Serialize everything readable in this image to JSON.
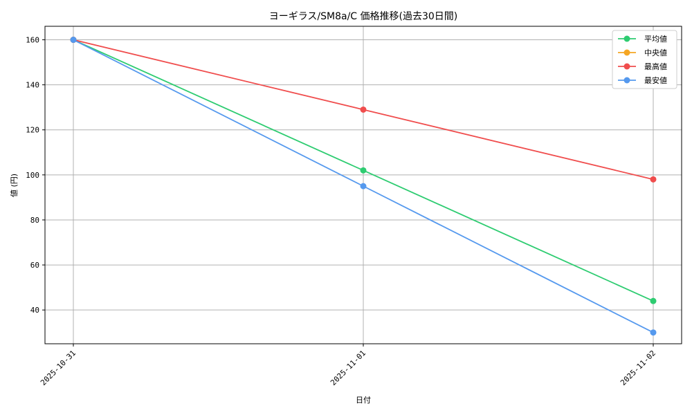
{
  "chart_data": {
    "type": "line",
    "title": "ヨーギラス/SM8a/C 価格推移(過去30日間)",
    "xlabel": "日付",
    "ylabel": "値 (円)",
    "categories": [
      "2025-10-31",
      "2025-11-01",
      "2025-11-02"
    ],
    "yticks": [
      40,
      60,
      80,
      100,
      120,
      140,
      160
    ],
    "ylim": [
      25,
      166
    ],
    "grid": true,
    "legend_position": "top-right",
    "series": [
      {
        "name": "平均値",
        "color": "#2ecc71",
        "values": [
          160,
          102,
          44
        ]
      },
      {
        "name": "中央値",
        "color": "#f5a623",
        "values": [
          160,
          null,
          null
        ]
      },
      {
        "name": "最高値",
        "color": "#f04d4d",
        "values": [
          160,
          129,
          98
        ]
      },
      {
        "name": "最安値",
        "color": "#5599ee",
        "values": [
          160,
          95,
          30
        ]
      }
    ]
  }
}
